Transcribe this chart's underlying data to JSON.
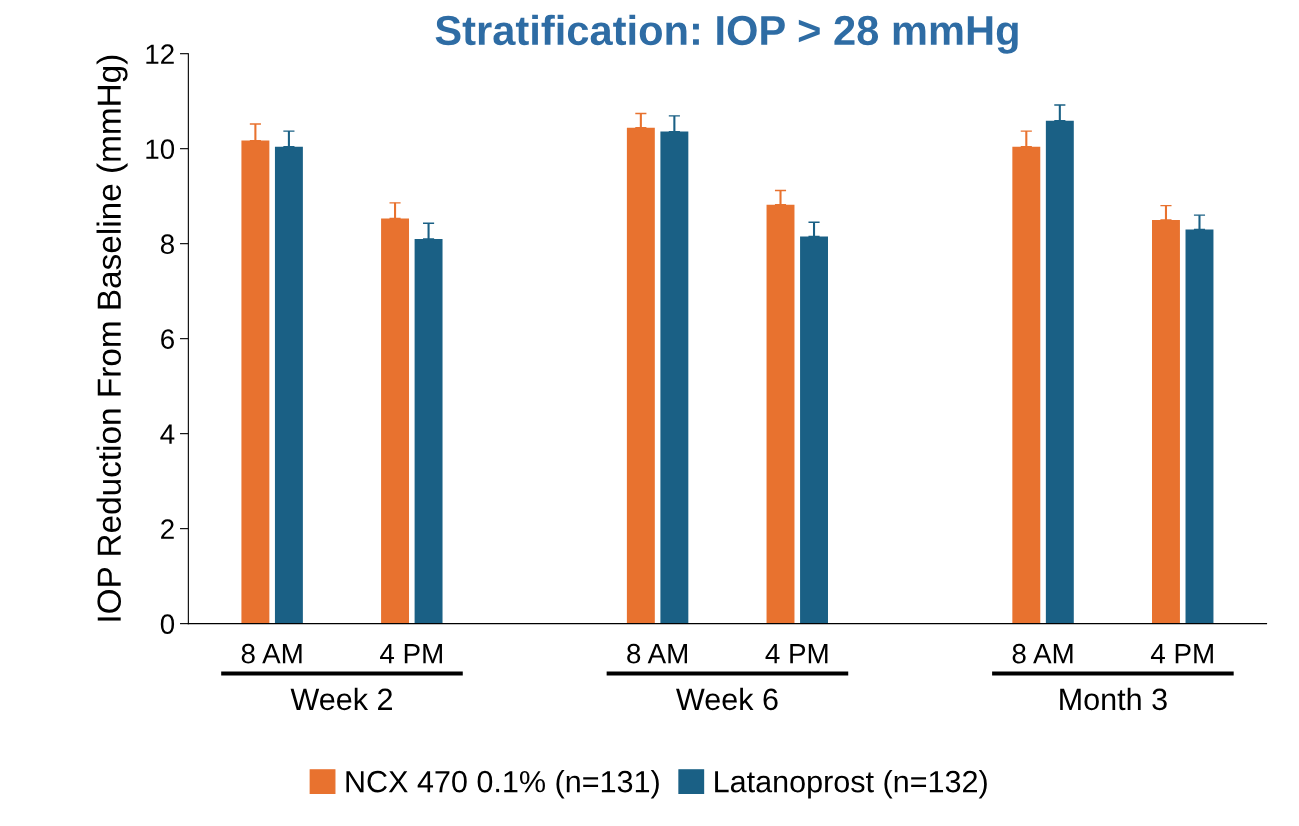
{
  "chart_data": {
    "type": "bar",
    "title": "Stratification: IOP > 28 mmHg",
    "ylabel": "IOP Reduction From Baseline (mmHg)",
    "categories": [
      "8 AM",
      "4 PM",
      "8 AM",
      "4 PM",
      "8 AM",
      "4 PM"
    ],
    "series": [
      {
        "name": "NCX 470 0.1% (n=131)",
        "color": "#e8722f",
        "values": [
          10.17,
          8.53,
          10.44,
          8.82,
          10.04,
          8.5
        ],
        "errors": [
          0.35,
          0.33,
          0.3,
          0.3,
          0.33,
          0.3
        ]
      },
      {
        "name": "Latanoprost (n=132)",
        "color": "#1a6085",
        "values": [
          10.04,
          8.1,
          10.36,
          8.15,
          10.59,
          8.3
        ],
        "errors": [
          0.33,
          0.33,
          0.33,
          0.3,
          0.33,
          0.3
        ]
      }
    ],
    "annotations": [
      "Week 2",
      "Week 6",
      "Month 3"
    ],
    "ylim": [
      0,
      12
    ],
    "yticks": [
      0,
      2,
      4,
      6,
      8,
      10,
      12
    ],
    "grid": false,
    "legend": "bottom"
  }
}
